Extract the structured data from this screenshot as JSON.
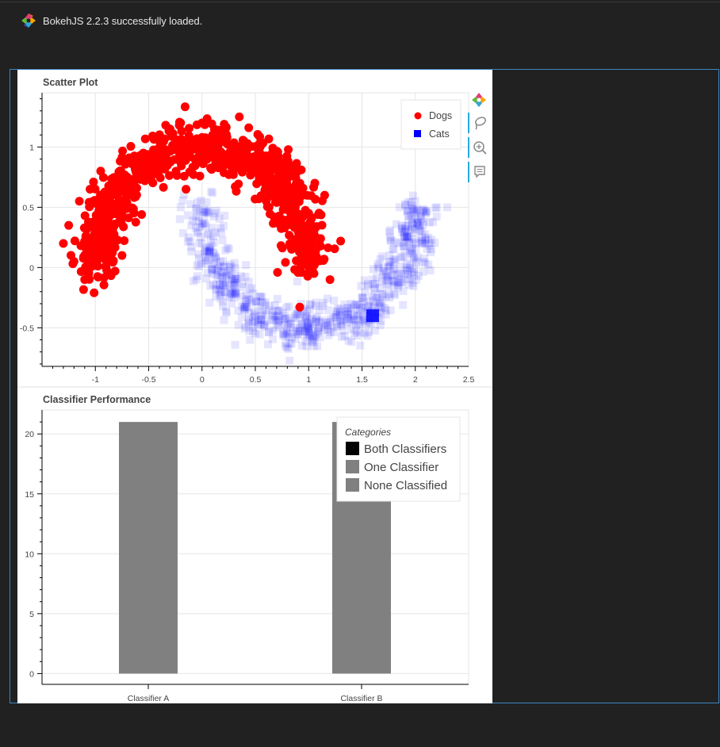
{
  "banner": {
    "text": "BokehJS 2.2.3 successfully loaded.",
    "logo": "bokeh-logo-icon"
  },
  "toolbar": {
    "items": [
      {
        "name": "bokeh-logo",
        "icon": "bokeh-logo-icon",
        "active": false
      },
      {
        "name": "lasso-select",
        "icon": "lasso-icon",
        "active": true
      },
      {
        "name": "wheel-zoom",
        "icon": "wheel-zoom-icon",
        "active": true
      },
      {
        "name": "hover",
        "icon": "hover-comment-icon",
        "active": true
      }
    ]
  },
  "chart_data": [
    {
      "type": "scatter",
      "title": "Scatter Plot",
      "xlabel": "",
      "ylabel": "",
      "xlim": [
        -1.5,
        2.5
      ],
      "ylim": [
        -0.82,
        1.45
      ],
      "xticks": [
        -1,
        -0.5,
        0,
        0.5,
        1,
        1.5,
        2,
        2.5
      ],
      "xtick_labels": [
        "-1",
        "-0.5",
        "0",
        "0.5",
        "1",
        "1.5",
        "2",
        "2.5"
      ],
      "yticks": [
        -0.5,
        0,
        0.5,
        1
      ],
      "ytick_labels": [
        "-0.5",
        "0",
        "0.5",
        "1"
      ],
      "grid": true,
      "legend_position": "top-right",
      "series": [
        {
          "name": "Dogs",
          "marker": "circle",
          "color": "#ff0000",
          "alpha": 1.0,
          "distribution": "upper half-moon, centre (0,0), radius 1, noise 0.1",
          "x": [
            -1.3,
            -1.25,
            -1.2,
            -1.15,
            -1.1,
            -1.05,
            -1.0,
            -0.95,
            -0.9,
            -0.85,
            -0.8,
            -0.7,
            -0.6,
            -0.5,
            -0.4,
            -0.3,
            -0.2,
            -0.1,
            0.0,
            0.1,
            0.2,
            0.3,
            0.4,
            0.5,
            0.6,
            0.7,
            0.8,
            0.85,
            0.9,
            0.95,
            1.0,
            1.05,
            1.1,
            1.15,
            1.2,
            1.3,
            -0.75,
            -0.55,
            -0.15,
            0.35,
            0.75
          ],
          "y": [
            0.2,
            0.35,
            0.05,
            0.55,
            -0.1,
            0.65,
            0.3,
            0.8,
            0.0,
            0.6,
            0.45,
            0.75,
            0.85,
            0.9,
            1.05,
            1.15,
            1.2,
            1.05,
            1.2,
            1.1,
            1.15,
            1.0,
            0.95,
            0.9,
            0.8,
            0.65,
            0.75,
            0.55,
            0.35,
            0.1,
            0.45,
            -0.05,
            0.2,
            0.6,
            -0.1,
            0.22,
            0.1,
            0.95,
            0.65,
            1.25,
            0.4
          ]
        },
        {
          "name": "Cats",
          "marker": "square",
          "color": "#0000ff",
          "alpha": 0.1,
          "distribution": "lower half-moon, centre (1,0.5), radius 1, noise 0.1",
          "x": [
            -0.2,
            -0.1,
            0.0,
            0.05,
            0.1,
            0.2,
            0.3,
            0.4,
            0.5,
            0.6,
            0.7,
            0.8,
            0.9,
            1.0,
            1.1,
            1.2,
            1.3,
            1.4,
            1.5,
            1.6,
            1.7,
            1.8,
            1.9,
            2.0,
            2.1,
            2.2,
            2.3,
            1.6,
            0.45,
            1.05
          ],
          "y": [
            0.5,
            0.35,
            0.2,
            0.1,
            -0.05,
            -0.15,
            -0.25,
            -0.35,
            -0.4,
            -0.45,
            -0.5,
            -0.55,
            -0.55,
            -0.5,
            -0.5,
            -0.45,
            -0.4,
            -0.3,
            -0.25,
            -0.1,
            0.0,
            0.15,
            0.3,
            0.4,
            0.45,
            0.5,
            0.5,
            -0.4,
            -0.6,
            -0.65
          ]
        }
      ]
    },
    {
      "type": "bar",
      "title": "Classifier Performance",
      "xlabel": "",
      "ylabel": "",
      "categories": [
        "Classifier A",
        "Classifier B"
      ],
      "series": [
        {
          "name": "Both Classifiers",
          "color": "#000000",
          "values": [
            0,
            0
          ]
        },
        {
          "name": "One Classifier",
          "color": "#808080",
          "values": [
            21,
            21
          ]
        },
        {
          "name": "None Classified",
          "color": "#808080",
          "values": [
            0,
            0
          ]
        }
      ],
      "stacked": true,
      "ylim": [
        -0.9,
        22
      ],
      "yticks": [
        0,
        5,
        10,
        15,
        20
      ],
      "ytick_labels": [
        "0",
        "5",
        "10",
        "15",
        "20"
      ],
      "grid": true,
      "legend_title": "Categories",
      "legend_position": "top-right"
    }
  ]
}
